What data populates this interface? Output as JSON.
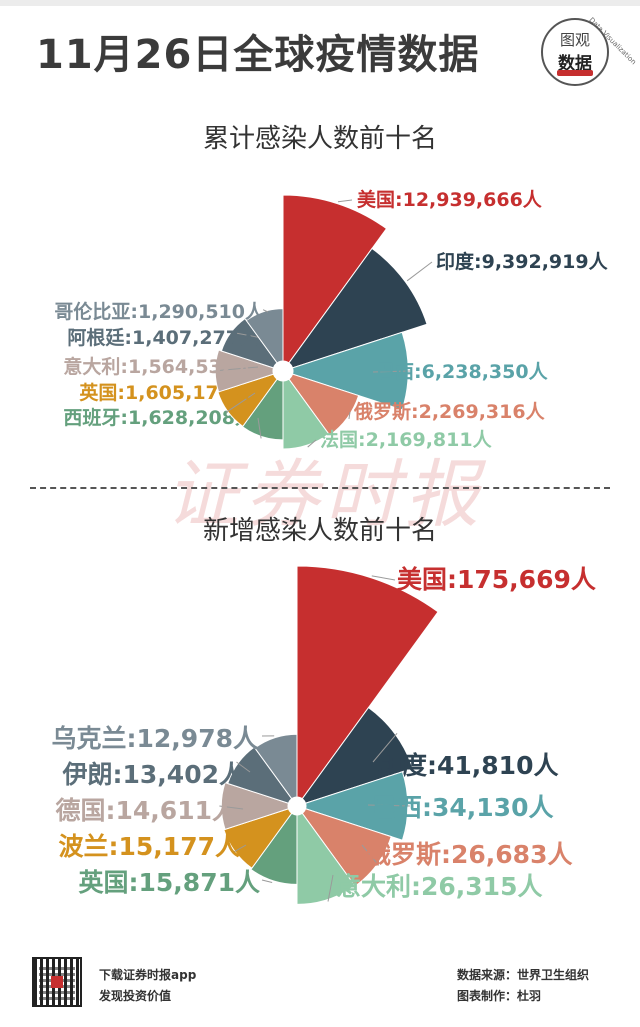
{
  "header": {
    "title": "11月26日全球疫情数据",
    "logo_top": "图观",
    "logo_mid": "数据",
    "logo_arc": "Data Visualization"
  },
  "watermark": "证券时报",
  "footer": {
    "app_line1": "下载证券时报app",
    "app_line2": "发现投资价值",
    "source": "数据来源：世界卫生组织",
    "author": "图表制作：杜羽"
  },
  "colors": {
    "red": "#c62f2f",
    "navy": "#2e4352",
    "teal": "#5aa3a8",
    "coral": "#d9826a",
    "mint": "#8fcaa6",
    "gold": "#d4921e",
    "taupe": "#b9a6a0",
    "slate": "#5b6e79",
    "grey": "#7a8a94",
    "green": "#64a07d"
  },
  "chart_data": [
    {
      "type": "pie",
      "subtype": "nightingale-rose",
      "title": "累计感染人数前十名",
      "unit": "人",
      "slices": [
        {
          "name": "美国",
          "value": 12939666,
          "value_label": "12,939,666",
          "color": "#c62f2f"
        },
        {
          "name": "印度",
          "value": 9392919,
          "value_label": "9,392,919",
          "color": "#2e4352"
        },
        {
          "name": "巴西",
          "value": 6238350,
          "value_label": "6,238,350",
          "color": "#5aa3a8"
        },
        {
          "name": "俄罗斯",
          "value": 2269316,
          "value_label": "2,269,316",
          "color": "#d9826a"
        },
        {
          "name": "法国",
          "value": 2169811,
          "value_label": "2,169,811",
          "color": "#8fcaa6"
        },
        {
          "name": "西班牙",
          "value": 1628208,
          "value_label": "1,628,208",
          "color": "#64a07d"
        },
        {
          "name": "英国",
          "value": 1605176,
          "value_label": "1,605,176",
          "color": "#d4921e"
        },
        {
          "name": "意大利",
          "value": 1564532,
          "value_label": "1,564,532",
          "color": "#b9a6a0"
        },
        {
          "name": "阿根廷",
          "value": 1407277,
          "value_label": "1,407,277",
          "color": "#5b6e79"
        },
        {
          "name": "哥伦比亚",
          "value": 1290510,
          "value_label": "1,290,510",
          "color": "#7a8a94"
        }
      ]
    },
    {
      "type": "pie",
      "subtype": "nightingale-rose",
      "title": "新增感染人数前十名",
      "unit": "人",
      "slices": [
        {
          "name": "美国",
          "value": 175669,
          "value_label": "175,669",
          "color": "#c62f2f"
        },
        {
          "name": "印度",
          "value": 41810,
          "value_label": "41,810",
          "color": "#2e4352"
        },
        {
          "name": "巴西",
          "value": 34130,
          "value_label": "34,130",
          "color": "#5aa3a8"
        },
        {
          "name": "俄罗斯",
          "value": 26683,
          "value_label": "26,683",
          "color": "#d9826a"
        },
        {
          "name": "意大利",
          "value": 26315,
          "value_label": "26,315",
          "color": "#8fcaa6"
        },
        {
          "name": "英国",
          "value": 15871,
          "value_label": "15,871",
          "color": "#64a07d"
        },
        {
          "name": "波兰",
          "value": 15177,
          "value_label": "15,177",
          "color": "#d4921e"
        },
        {
          "name": "德国",
          "value": 14611,
          "value_label": "14,611",
          "color": "#b9a6a0"
        },
        {
          "name": "伊朗",
          "value": 13402,
          "value_label": "13,402",
          "color": "#5b6e79"
        },
        {
          "name": "乌克兰",
          "value": 12978,
          "value_label": "12,978",
          "color": "#7a8a94"
        }
      ]
    }
  ]
}
